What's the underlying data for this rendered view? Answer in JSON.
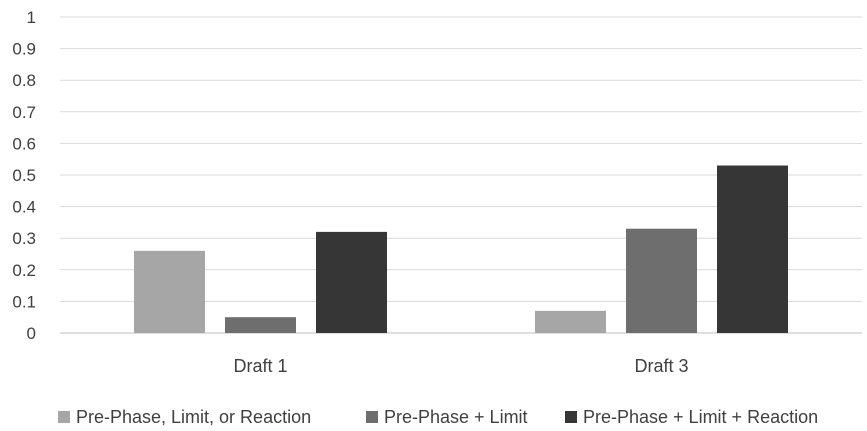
{
  "chart_data": {
    "type": "bar",
    "categories": [
      "Draft 1",
      "Draft 3"
    ],
    "series": [
      {
        "name": "Pre-Phase, Limit, or Reaction",
        "values": [
          0.26,
          0.07
        ],
        "color": "#a6a6a6"
      },
      {
        "name": "Pre-Phase + Limit",
        "values": [
          0.05,
          0.33
        ],
        "color": "#6e6e6e"
      },
      {
        "name": "Pre-Phase + Limit + Reaction",
        "values": [
          0.32,
          0.53
        ],
        "color": "#363636"
      }
    ],
    "yticks": [
      "0",
      "0.1",
      "0.2",
      "0.3",
      "0.4",
      "0.5",
      "0.6",
      "0.7",
      "0.8",
      "0.9",
      "1"
    ],
    "ylim": [
      0,
      1
    ],
    "grid": true,
    "legend_position": "bottom"
  }
}
